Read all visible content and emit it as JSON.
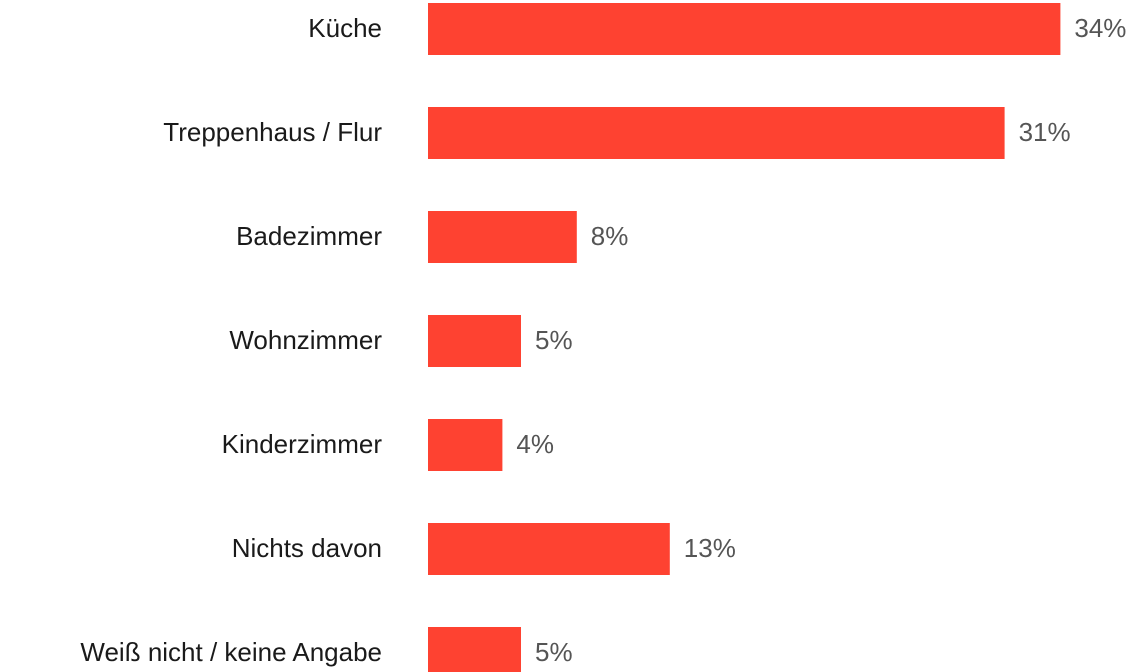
{
  "chart_data": {
    "type": "bar",
    "orientation": "horizontal",
    "categories": [
      "Küche",
      "Treppenhaus / Flur",
      "Badezimmer",
      "Wohnzimmer",
      "Kinderzimmer",
      "Nichts davon",
      "Weiß nicht / keine Angabe"
    ],
    "values": [
      34,
      31,
      8,
      5,
      4,
      13,
      5
    ],
    "value_labels": [
      "34%",
      "31%",
      "8%",
      "5%",
      "4%",
      "13%",
      "5%"
    ],
    "color": "#fe4231"
  }
}
